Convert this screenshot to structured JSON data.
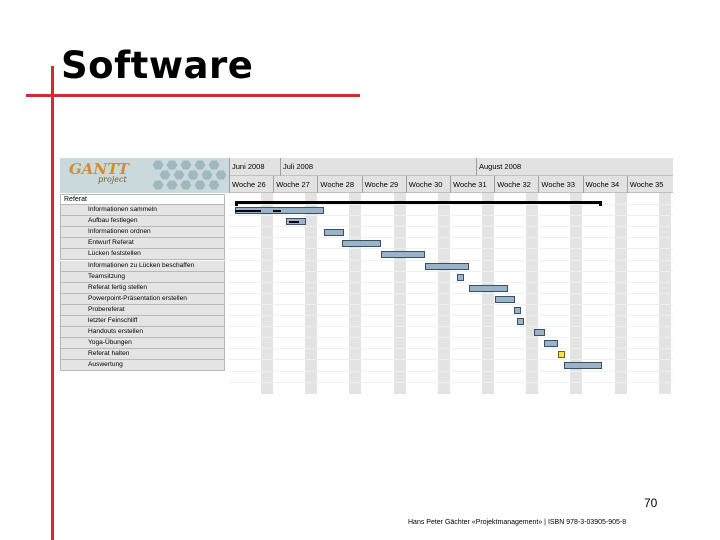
{
  "slide": {
    "title": "Software",
    "page_number": "70",
    "footer": "Hans Peter Gächter «Projektmanagement» | ISBN 978-3-03905-905-8"
  },
  "gantt": {
    "logo": {
      "text": "GANTT",
      "sub": "project"
    },
    "months": [
      "Juni 2008",
      "Juli 2008",
      "August 2008"
    ],
    "weeks": [
      "Woche 26",
      "Woche 27",
      "Woche 28",
      "Woche 29",
      "Woche 30",
      "Woche 31",
      "Woche 32",
      "Woche 33",
      "Woche 34",
      "Woche 35"
    ],
    "root_task": "Referat",
    "tasks": [
      "Informationen sammeln",
      "Aufbau festlegen",
      "Informationen ordnen",
      "Entwurf Referat",
      "Lücken feststellen",
      "Informationen zu Lücken beschaffen",
      "Teamsitzung",
      "Referat fertig stellen",
      "Powerpoint-Präsentation erstellen",
      "Probereferat",
      "letzter Feinschliff",
      "Handouts erstellen",
      "Yoga-Übungen",
      "Referat halten",
      "Auswertung"
    ],
    "colors": {
      "bar": "#9bb3c8",
      "milestone": "#f3e24a",
      "stripe": "#e3e3e3"
    }
  }
}
